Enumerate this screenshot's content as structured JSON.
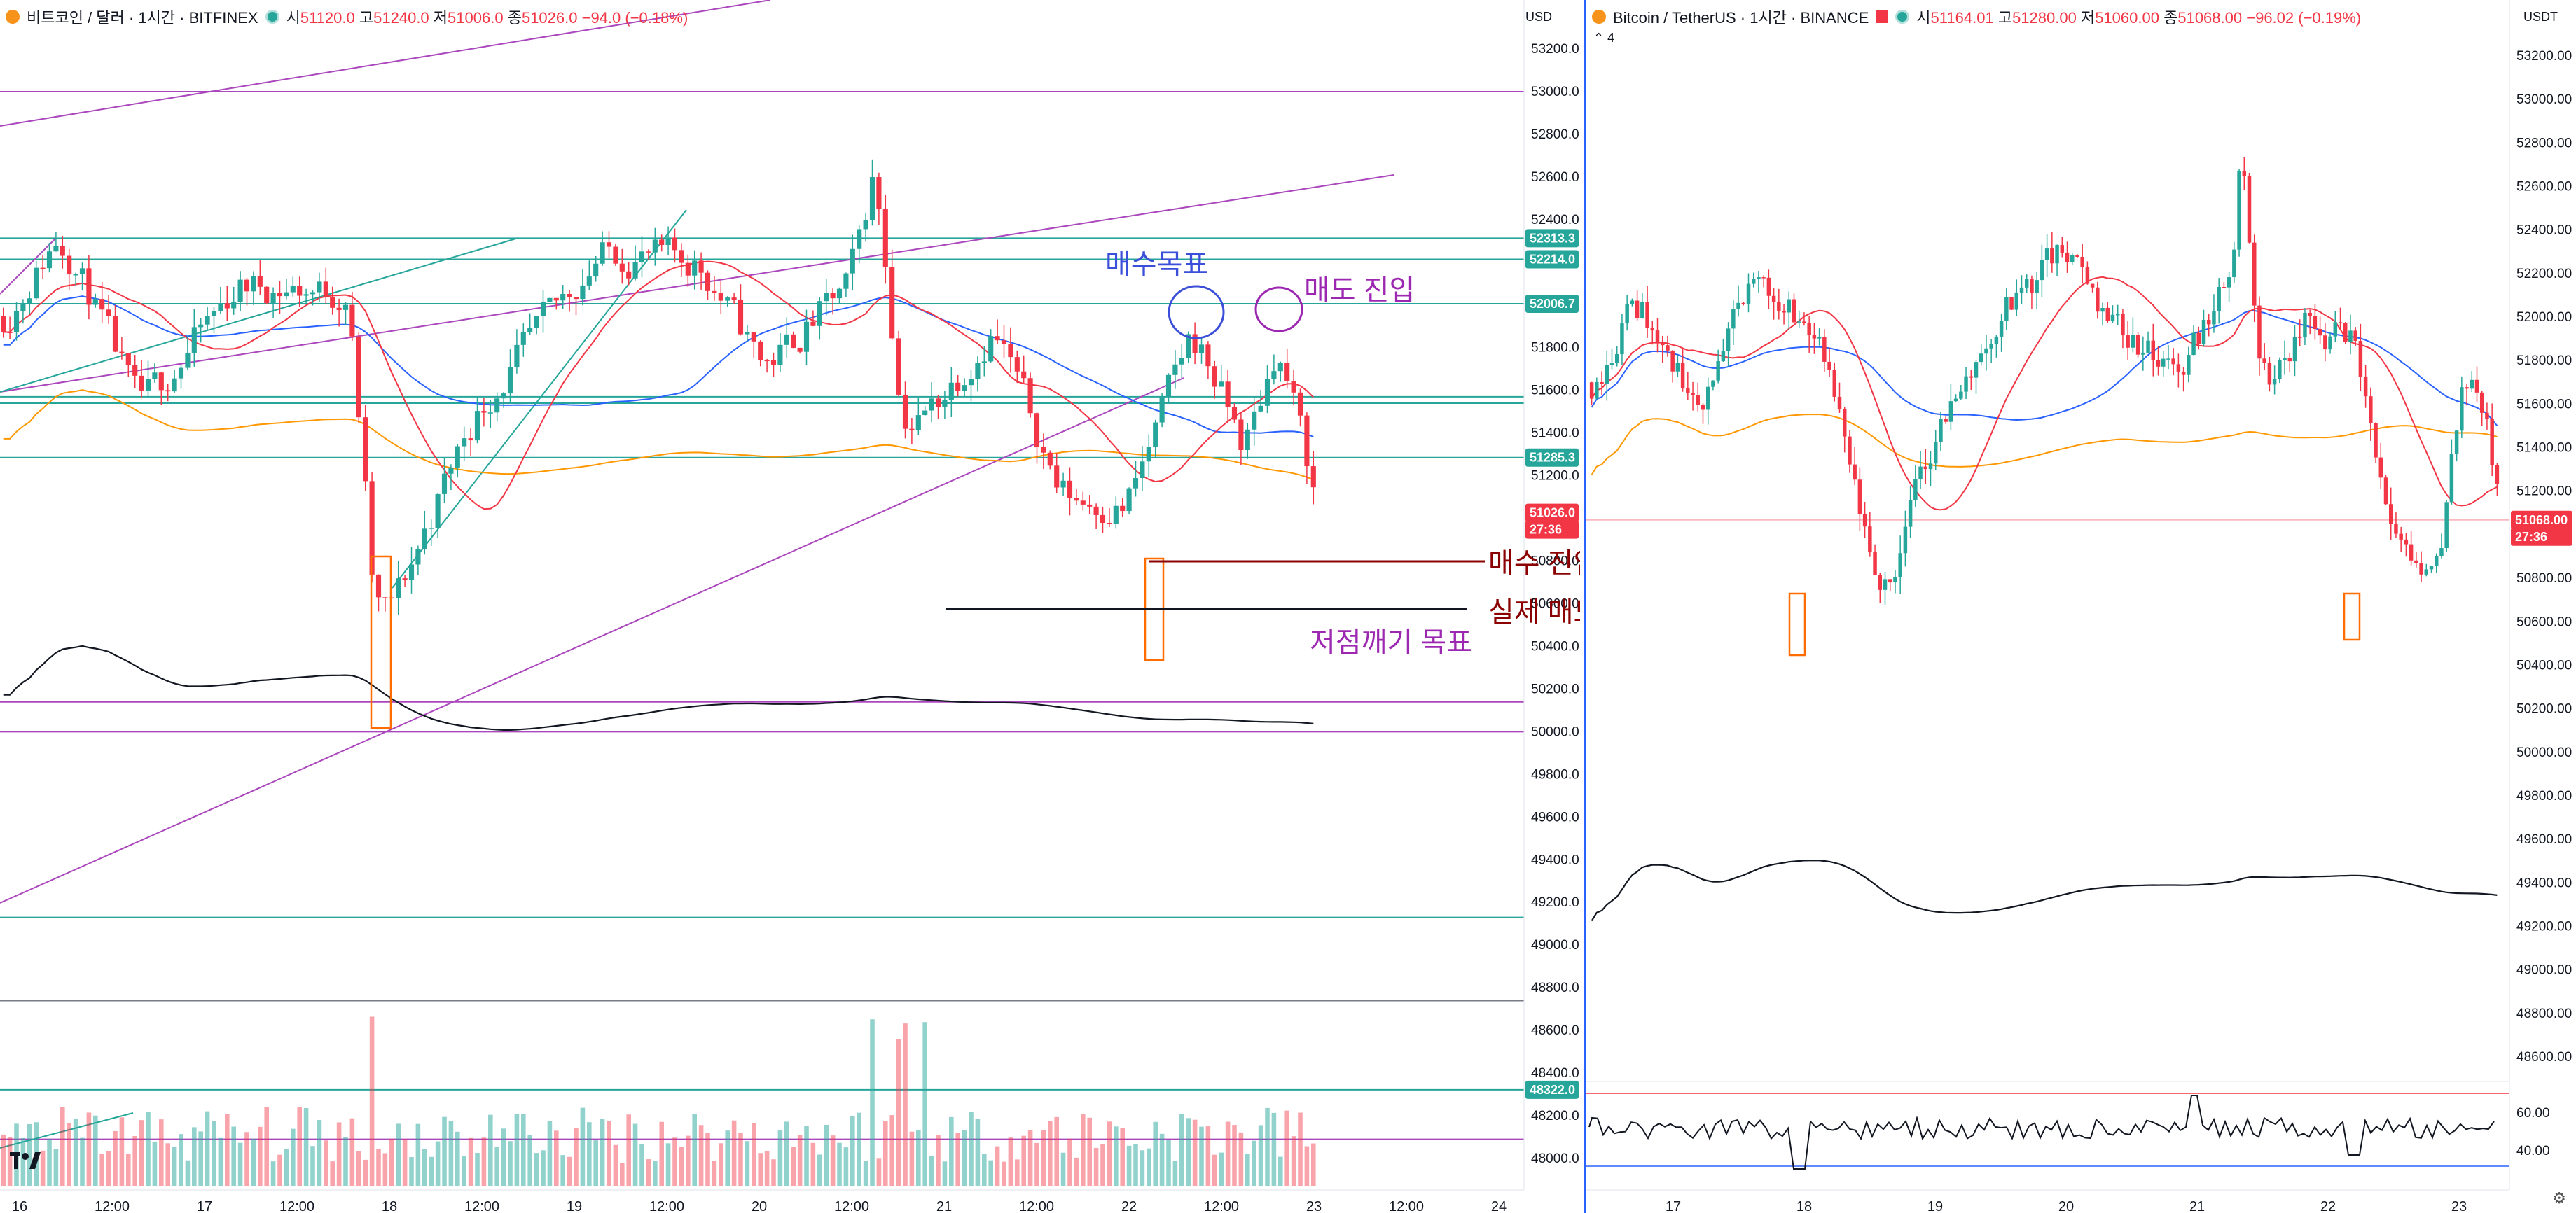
{
  "left": {
    "name": "비트코인 / 달러 · 1시간 · BITFINEX",
    "o_label": "시",
    "o": "51120.0",
    "h_label": "고",
    "h": "51240.0",
    "l_label": "저",
    "l": "51006.0",
    "c_label": "종",
    "c": "51026.0",
    "change": "−94.0 (−0.18%)",
    "currency": "USD",
    "price_ticks": [
      "53200.0",
      "53000.0",
      "52800.0",
      "52600.0",
      "52400.0",
      "52200.0",
      "52000.0",
      "51800.0",
      "51600.0",
      "51400.0",
      "51200.0",
      "51000.0",
      "50800.0",
      "50600.0",
      "50400.0",
      "50200.0",
      "50000.0",
      "49800.0",
      "49600.0",
      "49400.0",
      "49200.0",
      "49000.0",
      "48800.0",
      "48600.0",
      "48400.0",
      "48200.0",
      "48000.0"
    ],
    "tags": [
      {
        "text": "52313.3",
        "color": "#26a69a"
      },
      {
        "text": "52214.0",
        "color": "#26a69a"
      },
      {
        "text": "52006.7",
        "color": "#26a69a"
      },
      {
        "text": "51285.3",
        "color": "#26a69a"
      },
      {
        "text": "51026.0",
        "color": "#f23645"
      },
      {
        "text": "27:36",
        "color": "#f23645"
      },
      {
        "text": "48322.0",
        "color": "#26a69a"
      }
    ],
    "time_ticks": [
      "16",
      "12:00",
      "17",
      "12:00",
      "18",
      "12:00",
      "19",
      "12:00",
      "20",
      "12:00",
      "21",
      "12:00",
      "22",
      "12:00",
      "23",
      "12:00",
      "24"
    ],
    "annotations": {
      "buy_target": "매수목표",
      "sell_entry": "매도 진입",
      "because_buy": "매수 진입 때문에",
      "take_profit": "실제 매도 진입의 익절 목표",
      "low_break": "저점깨기 목표"
    }
  },
  "right": {
    "name": "Bitcoin / TetherUS · 1시간 · BINANCE",
    "o_label": "시",
    "o": "51164.01",
    "h_label": "고",
    "h": "51280.00",
    "l_label": "저",
    "l": "51060.00",
    "c_label": "종",
    "c": "51068.00",
    "change": "−96.02 (−0.19%)",
    "currency": "USDT",
    "sub_count": "4",
    "price_ticks": [
      "53200.00",
      "53000.00",
      "52800.00",
      "52600.00",
      "52400.00",
      "52200.00",
      "52000.00",
      "51800.00",
      "51600.00",
      "51400.00",
      "51200.00",
      "51000.00",
      "50800.00",
      "50600.00",
      "50400.00",
      "50200.00",
      "50000.00",
      "49800.00",
      "49600.00",
      "49400.00",
      "49200.00",
      "49000.00",
      "48800.00",
      "48600.00"
    ],
    "tags": [
      {
        "text": "51068.00",
        "color": "#f23645"
      },
      {
        "text": "27:36",
        "color": "#f23645"
      }
    ],
    "rsi_ticks": [
      "60.00",
      "40.00"
    ],
    "time_ticks": [
      "17",
      "18",
      "19",
      "20",
      "21",
      "22",
      "23"
    ]
  }
}
